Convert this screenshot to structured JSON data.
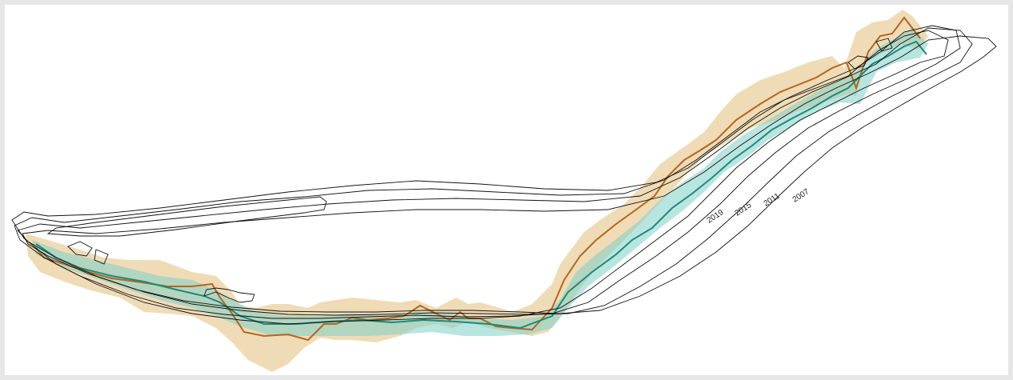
{
  "map": {
    "contour_labels": [
      {
        "year": "2019",
        "color": "#1a1a1a"
      },
      {
        "year": "2015",
        "color": "#1a1a1a"
      },
      {
        "year": "2011",
        "color": "#1a1a1a"
      },
      {
        "year": "2007",
        "color": "#1a1a1a"
      }
    ],
    "colors": {
      "background": "#e6e6e6",
      "panel": "#ffffff",
      "outline": "#111111",
      "orange_line": "#b5651d",
      "orange_band": "#e6c98f",
      "teal_line": "#1b8a7a",
      "teal_band": "#7fd0c6"
    }
  }
}
